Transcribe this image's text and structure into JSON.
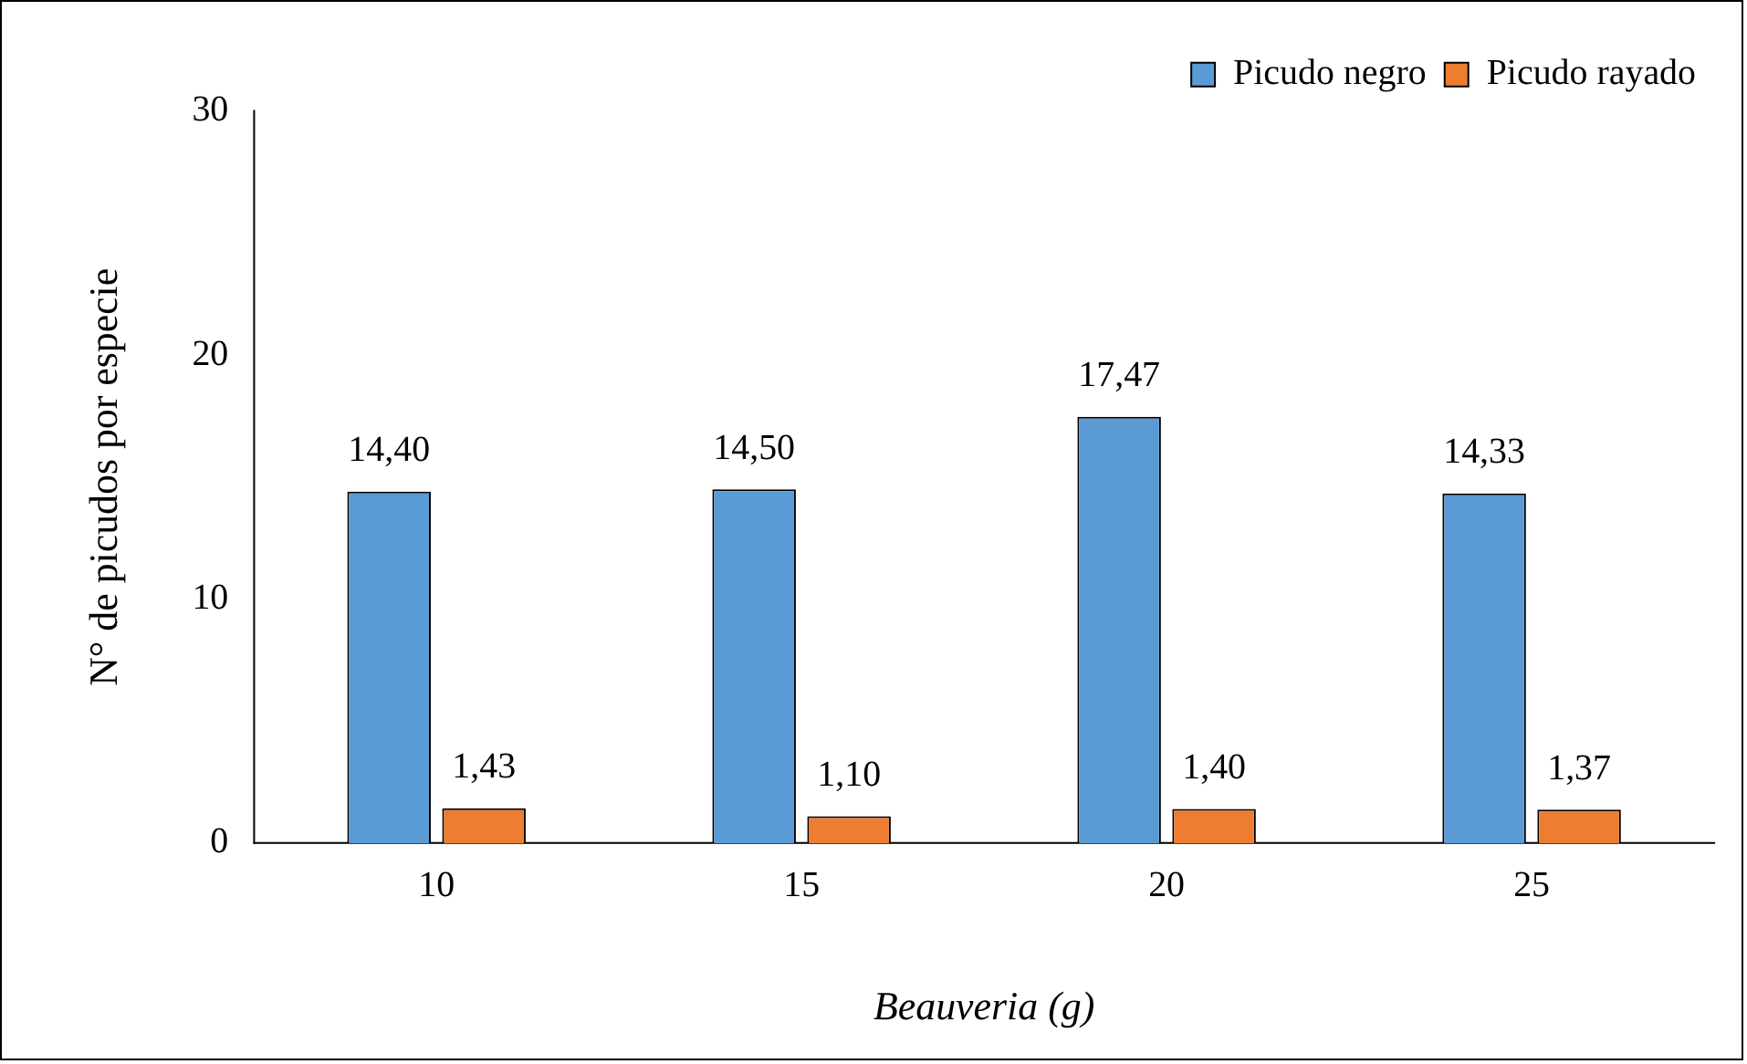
{
  "chart_data": {
    "type": "bar",
    "xlabel": "Beauveria (g)",
    "ylabel": "N° de picudos por especie",
    "categories": [
      "10",
      "15",
      "20",
      "25"
    ],
    "series": [
      {
        "name": "Picudo negro",
        "color": "#5b9bd5",
        "values": [
          14.4,
          14.5,
          17.47,
          14.33
        ],
        "value_labels": [
          "14,40",
          "14,50",
          "17,47",
          "14,33"
        ]
      },
      {
        "name": "Picudo rayado",
        "color": "#ed7d31",
        "values": [
          1.43,
          1.1,
          1.4,
          1.37
        ],
        "value_labels": [
          "1,43",
          "1,10",
          "1,40",
          "1,37"
        ]
      }
    ],
    "ylim": [
      0,
      30
    ],
    "yticks": [
      0,
      10,
      20,
      30
    ],
    "grid": false,
    "legend": "top right"
  }
}
